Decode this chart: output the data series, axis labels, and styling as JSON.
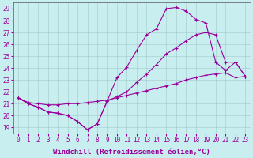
{
  "bg_color": "#c8eef0",
  "line_color": "#990099",
  "xlim": [
    -0.5,
    23.5
  ],
  "ylim": [
    18.5,
    29.5
  ],
  "yticks": [
    19,
    20,
    21,
    22,
    23,
    24,
    25,
    26,
    27,
    28,
    29
  ],
  "xticks": [
    0,
    1,
    2,
    3,
    4,
    5,
    6,
    7,
    8,
    9,
    10,
    11,
    12,
    13,
    14,
    15,
    16,
    17,
    18,
    19,
    20,
    21,
    22,
    23
  ],
  "xlabel": "Windchill (Refroidissement éolien,°C)",
  "line_straight_x": [
    0,
    1,
    2,
    3,
    4,
    5,
    6,
    7,
    8,
    9,
    10,
    11,
    12,
    13,
    14,
    15,
    16,
    17,
    18,
    19,
    20,
    21,
    22,
    23
  ],
  "line_straight_y": [
    21.5,
    21.1,
    21.0,
    20.9,
    20.9,
    21.0,
    21.0,
    21.1,
    21.2,
    21.3,
    21.5,
    21.7,
    21.9,
    22.1,
    22.3,
    22.5,
    22.7,
    23.0,
    23.2,
    23.4,
    23.5,
    23.6,
    23.2,
    23.3
  ],
  "line_mid_x": [
    0,
    1,
    2,
    3,
    4,
    5,
    6,
    7,
    8,
    9,
    10,
    11,
    12,
    13,
    14,
    15,
    16,
    17,
    18,
    19,
    20,
    21,
    22,
    23
  ],
  "line_mid_y": [
    21.5,
    21.0,
    20.7,
    20.3,
    20.2,
    20.0,
    19.5,
    18.8,
    19.3,
    21.2,
    21.6,
    22.0,
    22.8,
    23.5,
    24.3,
    25.2,
    25.7,
    26.3,
    26.8,
    27.0,
    26.8,
    24.5,
    24.5,
    23.3
  ],
  "line_top_x": [
    0,
    1,
    2,
    3,
    4,
    5,
    6,
    7,
    8,
    9,
    10,
    11,
    12,
    13,
    14,
    15,
    16,
    17,
    18,
    19,
    20,
    21,
    22,
    23
  ],
  "line_top_y": [
    21.5,
    21.0,
    20.7,
    20.3,
    20.2,
    20.0,
    19.5,
    18.8,
    19.3,
    21.2,
    23.2,
    24.1,
    25.5,
    26.8,
    27.3,
    29.0,
    29.1,
    28.8,
    28.1,
    27.8,
    24.5,
    23.8,
    24.5,
    23.3
  ],
  "tick_fontsize": 5.5,
  "label_fontsize": 6.5
}
